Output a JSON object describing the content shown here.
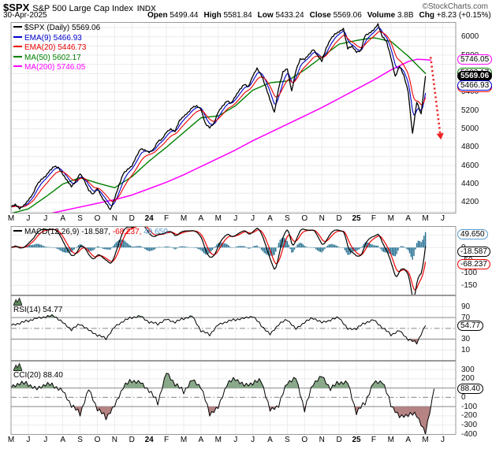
{
  "header": {
    "symbol": "$SPX",
    "name": "S&P 500 Large Cap Index",
    "exchange": "INDX",
    "source": "©StockCharts.com",
    "date": "30-Apr-2025",
    "fields": [
      {
        "label": "Open",
        "value": "5499.44"
      },
      {
        "label": "High",
        "value": "5581.84"
      },
      {
        "label": "Low",
        "value": "5433.24"
      },
      {
        "label": "Close",
        "value": "5569.06"
      },
      {
        "label": "Volume",
        "value": "3.8B"
      },
      {
        "label": "Chg",
        "value": "+8.23 (+0.15%)"
      }
    ],
    "change_arrow": "▲"
  },
  "months": {
    "labels": [
      "M",
      "J",
      "J",
      "A",
      "S",
      "O",
      "N",
      "D",
      "24",
      "F",
      "M",
      "A",
      "M",
      "J",
      "J",
      "A",
      "S",
      "O",
      "N",
      "D",
      "25",
      "F",
      "M",
      "A",
      "M",
      "J"
    ]
  },
  "colors": {
    "price": "#000000",
    "ema9": "#0000cc",
    "ema20": "#ee0000",
    "ma50": "#008000",
    "ma200": "#ff00ff",
    "macd_line": "#000000",
    "macd_signal": "#ee0000",
    "macd_hist": "#236e90",
    "hist_value_text": "#5599cc",
    "fill_green": "#8aa98a",
    "fill_red": "#b58383",
    "grid": "#ececec",
    "border": "#999999",
    "threshold": "#888888",
    "arrow": "#ee2222"
  },
  "chart_data": [
    {
      "type": "line",
      "panel": "price",
      "title": "$SPX (Daily) with EMA(9), EMA(20), MA(50), MA(200)",
      "x_unit": "months from May-2023 to Jun-2025",
      "ylim": [
        4080,
        6160
      ],
      "yticks": [
        6000,
        5800,
        5600,
        5400,
        5200,
        5000,
        4800,
        4600,
        4400,
        4200
      ],
      "grid_step": 100,
      "legend": [
        {
          "label": "$SPX (Daily) 5569.06",
          "color": "#000000"
        },
        {
          "label": "EMA(9) 5466.93",
          "color": "#0000cc"
        },
        {
          "label": "EMA(20) 5446.73",
          "color": "#ee0000"
        },
        {
          "label": "MA(50) 5602.17",
          "color": "#008000"
        },
        {
          "label": "MA(200) 5746.05",
          "color": "#ff00ff"
        }
      ],
      "series": [
        {
          "name": "SPX close",
          "color": "#000000",
          "x_start": 0,
          "x_step": 0.25,
          "y": [
            4150,
            4180,
            4130,
            4170,
            4220,
            4290,
            4390,
            4450,
            4480,
            4550,
            4590,
            4580,
            4500,
            4440,
            4370,
            4430,
            4510,
            4440,
            4330,
            4290,
            4350,
            4260,
            4190,
            4120,
            4240,
            4390,
            4510,
            4560,
            4590,
            4700,
            4780,
            4770,
            4740,
            4780,
            4860,
            4890,
            4960,
            5000,
            4970,
            5090,
            5130,
            5180,
            5230,
            5250,
            5210,
            5060,
            5010,
            5060,
            5180,
            5250,
            5300,
            5280,
            5350,
            5430,
            5480,
            5460,
            5570,
            5660,
            5580,
            5460,
            5310,
            5180,
            5440,
            5620,
            5650,
            5410,
            5630,
            5760,
            5750,
            5810,
            5860,
            5800,
            5730,
            5880,
            5970,
            6030,
            6050,
            6090,
            5870,
            5900,
            5830,
            5850,
            6010,
            6040,
            6070,
            6140,
            6000,
            5950,
            5770,
            5570,
            5680,
            5580,
            5400,
            4950,
            5290,
            5160,
            5569
          ]
        },
        {
          "name": "MA(50)",
          "color": "#008000",
          "x_start": 0,
          "x_step": 1,
          "y": [
            4080,
            4130,
            4260,
            4400,
            4470,
            4410,
            4360,
            4480,
            4650,
            4800,
            4960,
            5120,
            5140,
            5250,
            5420,
            5500,
            5520,
            5640,
            5780,
            5920,
            5960,
            5990,
            5950,
            5790,
            5602
          ]
        },
        {
          "name": "MA(200)",
          "color": "#ff00ff",
          "x": [
            2.3,
            3,
            4,
            5,
            6,
            7,
            8,
            9,
            10,
            11,
            12,
            13,
            14,
            15,
            16,
            17,
            18,
            19,
            20,
            21,
            22,
            23,
            23.5,
            24,
            24.3
          ],
          "y": [
            4080,
            4110,
            4150,
            4190,
            4230,
            4280,
            4350,
            4420,
            4500,
            4590,
            4680,
            4770,
            4870,
            4960,
            5050,
            5140,
            5230,
            5330,
            5430,
            5530,
            5640,
            5730,
            5755,
            5752,
            5746
          ]
        }
      ],
      "derived": [
        {
          "name": "EMA(9)",
          "color": "#0000cc",
          "from": "SPX close",
          "alpha": 0.325
        },
        {
          "name": "EMA(20)",
          "color": "#ee0000",
          "from": "SPX close",
          "alpha": 0.161
        }
      ],
      "callouts": [
        {
          "value": 5746.05,
          "text": "5746.05",
          "border": "#ff00ff"
        },
        {
          "value": 5602.17,
          "text": "5602.17",
          "border": "#008000"
        },
        {
          "value": 5569.06,
          "text": "5569.06",
          "border": "#000000",
          "inverse": true
        },
        {
          "value": 5446.73,
          "text": "5446.73",
          "border": "#ee0000"
        },
        {
          "value": 5466.93,
          "text": "5466.93",
          "border": "#0000cc"
        }
      ],
      "annotation": {
        "type": "arrow",
        "color": "#ee2222",
        "from_x": 24.3,
        "from_y": 5780,
        "to_x": 24.85,
        "to_y": 4950
      }
    },
    {
      "type": "macd",
      "panel": "macd",
      "legend_name": "MACD(12,26,9)",
      "legend_values": [
        {
          "text": "-18.587,",
          "color": "#000000"
        },
        {
          "text": "-68.237,",
          "color": "#ee0000"
        },
        {
          "text": "49.650",
          "color": "#5599cc"
        }
      ],
      "values": {
        "macd": -18.587,
        "signal": -68.237,
        "histogram": 49.65
      },
      "ylim": [
        -190,
        85
      ],
      "yticks": [
        0,
        -50,
        -100,
        -150
      ],
      "grid": [
        50,
        0,
        -50,
        -100,
        -150
      ],
      "derived_from": "SPX close",
      "params": {
        "fast_alpha": 0.26,
        "slow_alpha": 0.126,
        "signal_alpha": 0.325
      },
      "callouts": [
        {
          "value": 49.65,
          "text": "49.650",
          "border": "#5599cc"
        },
        {
          "value": -18.587,
          "text": "-18.587",
          "border": "#000000"
        },
        {
          "value": -68.237,
          "text": "-68.237",
          "border": "#ee0000"
        }
      ]
    },
    {
      "type": "line",
      "panel": "rsi",
      "legend_label": "RSI(14) 54.77",
      "value": 54.77,
      "ylim": [
        -10,
        111
      ],
      "yticks": [
        90,
        70,
        50,
        30,
        10
      ],
      "hlines": {
        "solid": [
          70,
          30
        ],
        "dashdot": [
          50
        ],
        "light": [
          90,
          10
        ]
      },
      "fill_above": 70,
      "fill_below": 30,
      "series": {
        "name": "RSI(14)",
        "color": "#000000",
        "x_start": 0,
        "x_step": 0.5,
        "y": [
          55,
          60,
          64,
          68,
          72,
          73,
          60,
          48,
          58,
          46,
          38,
          31,
          52,
          64,
          70,
          72,
          62,
          58,
          66,
          62,
          68,
          72,
          46,
          38,
          56,
          63,
          66,
          68,
          73,
          55,
          38,
          58,
          66,
          48,
          62,
          69,
          60,
          66,
          70,
          48,
          50,
          60,
          65,
          52,
          38,
          45,
          30,
          23,
          54.77
        ]
      },
      "callouts": [
        {
          "value": 54.77,
          "text": "54.77",
          "border": "#000000"
        }
      ]
    },
    {
      "type": "line",
      "panel": "cci",
      "legend_label": "CCI(20) 88.40",
      "value": 88.4,
      "ylim": [
        -405,
        395
      ],
      "yticks": [
        300,
        200,
        100,
        0,
        -100,
        -200,
        -300,
        -400
      ],
      "hlines": {
        "solid": [
          100,
          -100
        ],
        "dashdot": [
          0
        ],
        "light": [
          300,
          200,
          -200,
          -300
        ]
      },
      "fill_above": 100,
      "fill_below": -100,
      "series": {
        "name": "CCI(20)",
        "color": "#000000",
        "x_start": 0,
        "x_step": 0.5,
        "y": [
          100,
          160,
          140,
          80,
          150,
          120,
          60,
          -80,
          -180,
          80,
          -120,
          -220,
          -100,
          120,
          180,
          150,
          80,
          -60,
          260,
          150,
          60,
          180,
          120,
          -180,
          -120,
          150,
          200,
          120,
          160,
          180,
          -150,
          -80,
          160,
          200,
          -130,
          150,
          220,
          100,
          160,
          150,
          -160,
          -60,
          150,
          180,
          -80,
          -220,
          -180,
          -190,
          -400,
          88.4
        ]
      },
      "callouts": [
        {
          "value": 88.4,
          "text": "88.40",
          "border": "#000000"
        }
      ]
    }
  ]
}
